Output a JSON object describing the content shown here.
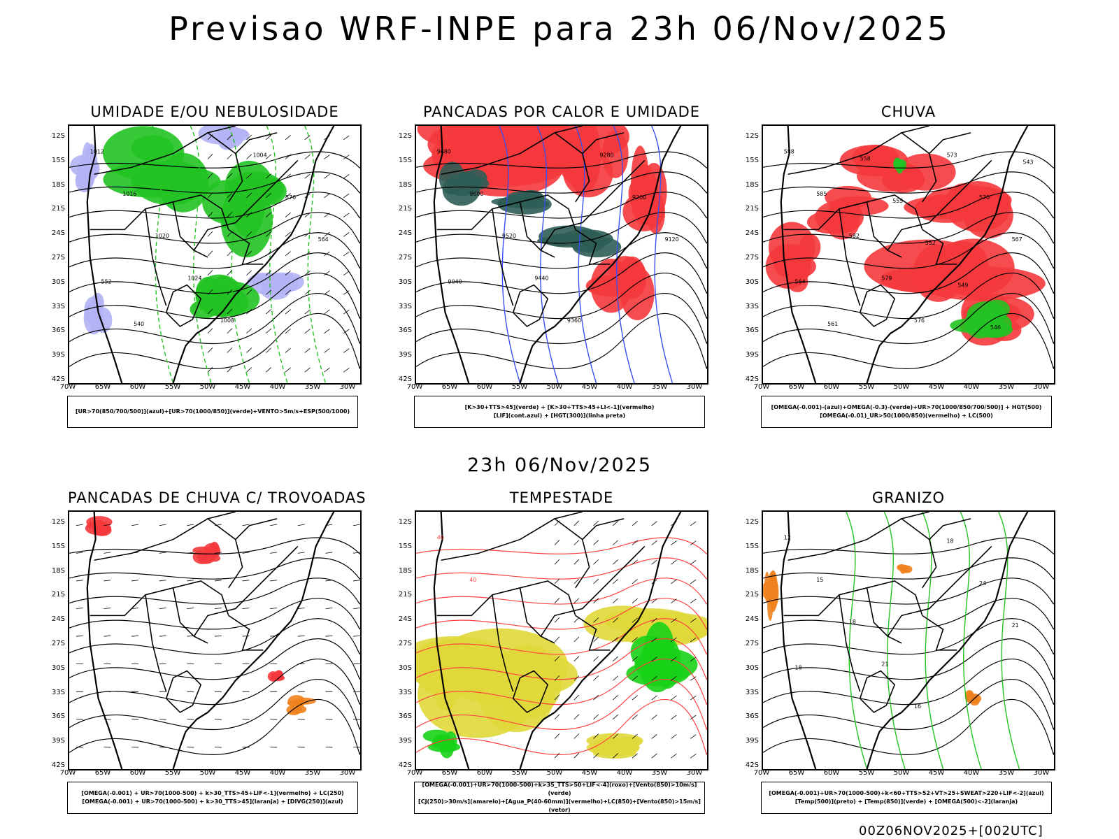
{
  "header": {
    "title": "Previsao WRF-INPE  para 23h 06/Nov/2025",
    "mid_date": "23h 06/Nov/2025",
    "footer_run": "00Z06NOV2025+[002UTC]"
  },
  "axes": {
    "lat_labels": [
      "12S",
      "15S",
      "18S",
      "21S",
      "24S",
      "27S",
      "30S",
      "33S",
      "36S",
      "39S",
      "42S"
    ],
    "lon_labels": [
      "70W",
      "65W",
      "60W",
      "55W",
      "50W",
      "45W",
      "40W",
      "35W",
      "30W"
    ]
  },
  "panels": [
    {
      "id": "umidade",
      "title": "UMIDADE E/OU NEBULOSIDADE",
      "legend": [
        "[UR>70(850/700/500)](azul)+[UR>70(1000/850)](verde)+VENTO>5m/s+ESP(500/1000)"
      ],
      "colors": {
        "primary": "#22c322",
        "secondary": "#b3b3f5",
        "contour": "#ff3030"
      },
      "contour_labels": [
        "1012",
        "1016",
        "1020",
        "1024",
        "1008",
        "1004",
        "576",
        "564",
        "552",
        "540"
      ]
    },
    {
      "id": "pancadas-calor",
      "title": "PANCADAS POR CALOR E UMIDADE",
      "legend": [
        "[K>30+TTS>45](verde) + [K>30+TTS>45+LI<-1](vermelho)",
        "[LIF](cont.azul) + [HGT(300)](linha preta)"
      ],
      "colors": {
        "primary": "#f5383c",
        "secondary": "#2f5d57",
        "contour": "#3a4ef0"
      },
      "contour_labels": [
        "9680",
        "9600",
        "9520",
        "9440",
        "9360",
        "9280",
        "9200",
        "9120",
        "9040"
      ]
    },
    {
      "id": "chuva",
      "title": "CHUVA",
      "legend": [
        "[OMEGA(-0.001)-(azul)+OMEGA(-0.3)-(verde)+UR>70(1000/850/700/500)] + HGT(500)",
        "[OMEGA(-0.01)_UR>50(1000/850)(vermelho) + LC(500)"
      ],
      "colors": {
        "primary": "#f5383c",
        "secondary": "#22c322",
        "contour": "#1a3cff"
      },
      "contour_labels": [
        "588",
        "585",
        "582",
        "579",
        "576",
        "573",
        "570",
        "567",
        "564",
        "561",
        "558",
        "555",
        "552",
        "549",
        "546",
        "543"
      ]
    },
    {
      "id": "pancadas-trovoadas",
      "title": "PANCADAS DE CHUVA C/ TROVOADAS",
      "legend": [
        "[OMEGA(-0.001) + UR>70(1000-500) + k>30_TTS>45+LIF<-1](vermelho) + LC(250)",
        "[OMEGA(-0.001) + UR>70(1000-500) + k>30_TTS>45](laranja) + [DIVG(250)](azul)"
      ],
      "colors": {
        "primary": "#f5383c",
        "secondary": "#f0821e",
        "contour": "#1a3cff"
      },
      "contour_labels": []
    },
    {
      "id": "tempestade",
      "title": "TEMPESTADE",
      "legend": [
        "[OMEGA(-0.001)+UR>70(1000-500)+k>35_TTS>50+LIF<-4](roxo)+[Vento(850)>10m/s](verde)",
        "[CJ(250)>30m/s](amarelo)+[Agua_P(40-60mm)](vermelho)+LC(850)+[Vento(850)>15m/s](vetor)"
      ],
      "colors": {
        "primary": "#e0d83a",
        "secondary": "#17d117",
        "contour": "#ff4040"
      },
      "contour_labels": [
        "40",
        "40"
      ]
    },
    {
      "id": "granizo",
      "title": "GRANIZO",
      "legend": [
        "[OMEGA(-0.001)+UR>70(1000-500)+k<60+TTS>52+VT>25+SWEAT>220+LIF<-2](azul)",
        "[Temp(500)](preto) + [Temp(850)](verde) + [OMEGA(500)<-2](laranja)"
      ],
      "colors": {
        "primary": "#22c322",
        "secondary": "#f0821e",
        "contour": "#000000"
      },
      "contour_labels": [
        "12",
        "15",
        "18",
        "21",
        "16",
        "18",
        "24",
        "21",
        "18"
      ]
    }
  ]
}
